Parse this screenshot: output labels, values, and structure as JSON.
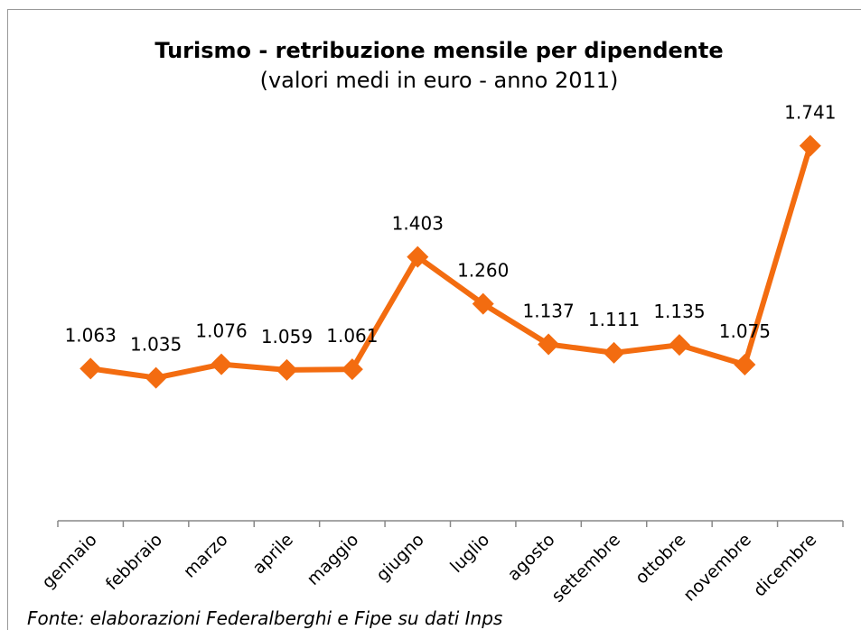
{
  "chart_data": {
    "type": "line",
    "title": "Turismo - retribuzione mensile per dipendente",
    "subtitle": "(valori medi in euro - anno 2011)",
    "categories": [
      "gennaio",
      "febbraio",
      "marzo",
      "aprile",
      "maggio",
      "giugno",
      "luglio",
      "agosto",
      "settembre",
      "ottobre",
      "novembre",
      "dicembre"
    ],
    "values": [
      1063,
      1035,
      1076,
      1059,
      1061,
      1403,
      1260,
      1137,
      1111,
      1135,
      1075,
      1741
    ],
    "value_labels": [
      "1.063",
      "1.035",
      "1.076",
      "1.059",
      "1.061",
      "1.403",
      "1.260",
      "1.137",
      "1.111",
      "1.135",
      "1.075",
      "1.741"
    ],
    "color": "#f36c10",
    "ylim": [
      600,
      1800
    ],
    "source": "Fonte: elaborazioni Federalberghi e Fipe su dati Inps"
  }
}
